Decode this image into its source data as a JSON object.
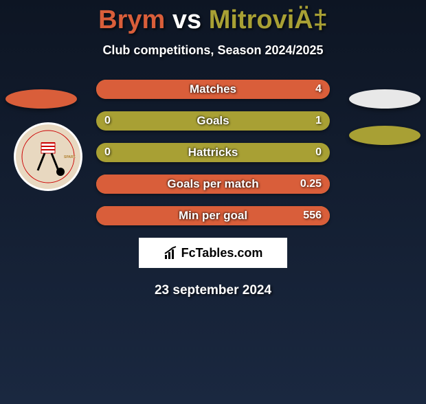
{
  "header": {
    "player1": "Brym",
    "vs": "vs",
    "player2": "MitroviÄ‡",
    "player1_color": "#d95e3a",
    "player2_color": "#a8a034",
    "subtitle": "Club competitions, Season 2024/2025"
  },
  "badges": {
    "left_color": "#d95e3a",
    "right_top_color": "#e8e8e8",
    "right_bottom_color": "#a8a034"
  },
  "stats": {
    "bg_color": "#a8a034",
    "fill_color": "#d95e3a",
    "rows": [
      {
        "label": "Matches",
        "left": "",
        "right": "4",
        "fill_pct": 100
      },
      {
        "label": "Goals",
        "left": "0",
        "right": "1",
        "fill_pct": 0
      },
      {
        "label": "Hattricks",
        "left": "0",
        "right": "0",
        "fill_pct": 0
      },
      {
        "label": "Goals per match",
        "left": "",
        "right": "0.25",
        "fill_pct": 100
      },
      {
        "label": "Min per goal",
        "left": "",
        "right": "556",
        "fill_pct": 100
      }
    ]
  },
  "branding": "FcTables.com",
  "date": "23 september 2024"
}
